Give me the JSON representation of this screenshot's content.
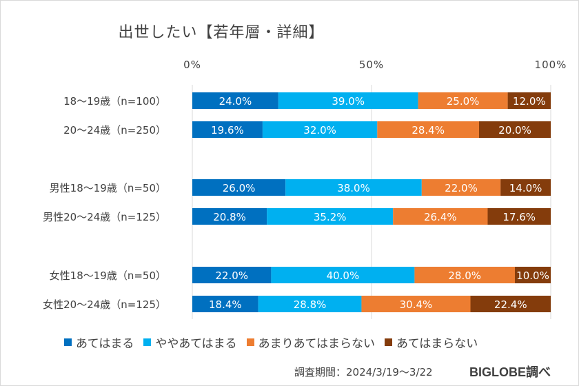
{
  "title": "出世したい【若年層・詳細】",
  "footer": {
    "period": "調査期間：2024/3/19～3/22",
    "source": "BIGLOBE調べ"
  },
  "colors": {
    "あてはまる": "#0070C0",
    "ややあてはまる": "#00B0F0",
    "あまりあてはまらない": "#ED7D31",
    "あてはまらない": "#843C0C",
    "gridline": "#d9d9d9",
    "text": "#404040"
  },
  "chart_data": {
    "type": "bar",
    "orientation": "horizontal",
    "stacked": true,
    "percent_scale": true,
    "title": "出世したい【若年層・詳細】",
    "xlim": [
      0,
      100
    ],
    "x_ticks": [
      "0%",
      "50%",
      "100%"
    ],
    "x_tick_values": [
      0,
      50,
      100
    ],
    "legend_position": "bottom",
    "categories": [
      "18～19歳（n=100）",
      "20～24歳（n=250）",
      "男性18～19歳（n=50）",
      "男性20～24歳（n=125）",
      "女性18～19歳（n=50）",
      "女性20～24歳（n=125）"
    ],
    "groups": [
      [
        0,
        1
      ],
      [
        2,
        3
      ],
      [
        4,
        5
      ]
    ],
    "series": [
      {
        "name": "あてはまる",
        "values": [
          24.0,
          19.6,
          26.0,
          20.8,
          22.0,
          18.4
        ],
        "labels": [
          "24.0%",
          "19.6%",
          "26.0%",
          "20.8%",
          "22.0%",
          "18.4%"
        ]
      },
      {
        "name": "ややあてはまる",
        "values": [
          39.0,
          32.0,
          38.0,
          35.2,
          40.0,
          28.8
        ],
        "labels": [
          "39.0%",
          "32.0%",
          "38.0%",
          "35.2%",
          "40.0%",
          "28.8%"
        ]
      },
      {
        "name": "あまりあてはまらない",
        "values": [
          25.0,
          28.4,
          22.0,
          26.4,
          28.0,
          30.4
        ],
        "labels": [
          "25.0%",
          "28.4%",
          "22.0%",
          "26.4%",
          "28.0%",
          "30.4%"
        ]
      },
      {
        "name": "あてはまらない",
        "values": [
          12.0,
          20.0,
          14.0,
          17.6,
          10.0,
          22.4
        ],
        "labels": [
          "12.0%",
          "20.0%",
          "14.0%",
          "17.6%",
          "10.0%",
          "22.4%"
        ]
      }
    ]
  }
}
